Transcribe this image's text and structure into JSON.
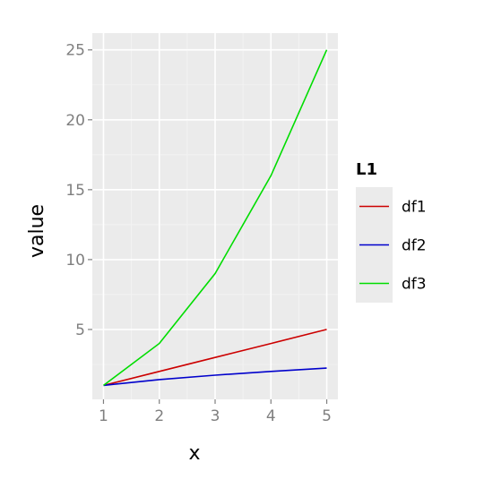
{
  "chart_data": {
    "type": "line",
    "xlabel": "x",
    "ylabel": "value",
    "x": [
      1,
      2,
      3,
      4,
      5
    ],
    "xlim": [
      0.8,
      5.2
    ],
    "ylim": [
      0,
      26.2
    ],
    "x_ticks": [
      "1",
      "2",
      "3",
      "4",
      "5"
    ],
    "y_ticks": [
      "5",
      "10",
      "15",
      "20",
      "25"
    ],
    "grid": true,
    "legend_position": "right",
    "legend": {
      "title": "L1",
      "entries": [
        "df1",
        "df2",
        "df3"
      ]
    },
    "series": [
      {
        "name": "df1",
        "color": "#cc0000",
        "values": [
          1,
          2,
          3,
          4,
          5
        ]
      },
      {
        "name": "df2",
        "color": "#0000cc",
        "values": [
          1,
          1.414,
          1.732,
          2,
          2.236
        ]
      },
      {
        "name": "df3",
        "color": "#00dd00",
        "values": [
          1,
          4,
          9,
          16,
          25
        ]
      }
    ],
    "colors": {
      "panel_bg": "#ebebeb",
      "grid_major": "#ffffff",
      "grid_minor": "#f2f2f2",
      "tick_text": "#7f7f7f"
    }
  }
}
